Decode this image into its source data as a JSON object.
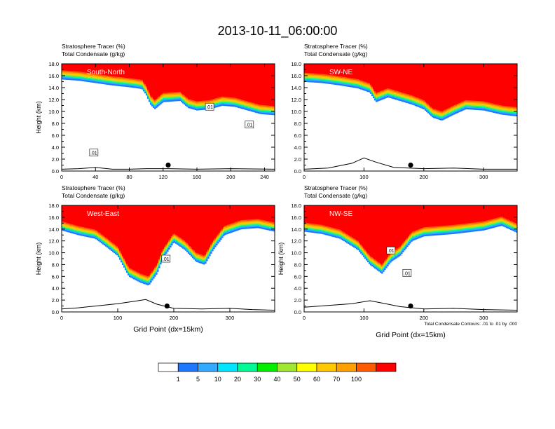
{
  "title": "2013-10-11_06:00:00",
  "colors": {
    "levels": [
      "#ffffff",
      "#1e78ff",
      "#32aaff",
      "#00e6ff",
      "#00fa96",
      "#00ee00",
      "#a0e632",
      "#ffff00",
      "#ffc800",
      "#ffa000",
      "#ff5a00",
      "#ff0000"
    ],
    "contour": "#000000",
    "terrain": "#000000"
  },
  "chart_data": [
    {
      "type": "heatmap",
      "name": "South-North",
      "header_line1": "Stratosphere Tracer   (%)",
      "header_line2": "Total Condensate   (g/kg)",
      "ylabel": "Height (km)",
      "xlabel": "",
      "xlim": [
        0,
        252
      ],
      "ylim": [
        0,
        18
      ],
      "xticks": [
        0,
        40,
        80,
        120,
        160,
        200,
        240
      ],
      "xtick_labels": [
        "0",
        "40",
        "80",
        "120",
        "160",
        "200",
        "240"
      ],
      "yticks": [
        0,
        2,
        4,
        6,
        8,
        10,
        12,
        14,
        16,
        18
      ],
      "ytick_labels": [
        "0.0",
        "2.0",
        "4.0",
        "6.0",
        "8.0",
        "10.0",
        "12.0",
        "14.0",
        "16.0",
        "18.0"
      ],
      "tracer_base_km": [
        [
          0,
          15.4
        ],
        [
          20,
          15.2
        ],
        [
          40,
          14.8
        ],
        [
          60,
          14.4
        ],
        [
          80,
          14.1
        ],
        [
          95,
          13.8
        ],
        [
          100,
          12.8
        ],
        [
          105,
          11.2
        ],
        [
          110,
          10.4
        ],
        [
          120,
          11.6
        ],
        [
          140,
          11.8
        ],
        [
          150,
          10.6
        ],
        [
          160,
          10.2
        ],
        [
          175,
          10.4
        ],
        [
          190,
          11.0
        ],
        [
          205,
          10.8
        ],
        [
          220,
          10.2
        ],
        [
          235,
          9.6
        ],
        [
          252,
          9.4
        ]
      ],
      "band_width_km": 1.5,
      "contour_label_text": ".01",
      "contour_labels_at": [
        [
          175,
          10.8
        ],
        [
          222,
          7.8
        ],
        [
          38,
          3.1
        ]
      ],
      "site_marker": [
        126,
        1.0
      ],
      "terrain_km": [
        [
          0,
          0.3
        ],
        [
          20,
          0.4
        ],
        [
          40,
          0.6
        ],
        [
          60,
          0.3
        ],
        [
          80,
          0.3
        ],
        [
          100,
          0.4
        ],
        [
          126,
          0.4
        ],
        [
          160,
          0.3
        ],
        [
          200,
          0.4
        ],
        [
          252,
          0.3
        ]
      ]
    },
    {
      "type": "heatmap",
      "name": "SW-NE",
      "header_line1": "Stratosphere Tracer   (%)",
      "header_line2": "Total Condensate   (g/kg)",
      "ylabel": "",
      "xlabel": "",
      "xlim": [
        0,
        356
      ],
      "ylim": [
        0,
        18
      ],
      "xticks": [
        0,
        100,
        200,
        300
      ],
      "xtick_labels": [
        "0",
        "100",
        "200",
        "300"
      ],
      "yticks": [
        0,
        2,
        4,
        6,
        8,
        10,
        12,
        14,
        16,
        18
      ],
      "ytick_labels": [
        "0.0",
        "2.0",
        "4.0",
        "6.0",
        "8.0",
        "10.0",
        "12.0",
        "14.0",
        "16.0",
        "18.0"
      ],
      "tracer_base_km": [
        [
          0,
          15.0
        ],
        [
          30,
          14.8
        ],
        [
          60,
          14.4
        ],
        [
          90,
          13.9
        ],
        [
          110,
          13.2
        ],
        [
          120,
          11.6
        ],
        [
          140,
          12.4
        ],
        [
          160,
          11.8
        ],
        [
          180,
          11.2
        ],
        [
          200,
          10.4
        ],
        [
          215,
          9.0
        ],
        [
          230,
          8.5
        ],
        [
          250,
          9.5
        ],
        [
          270,
          10.4
        ],
        [
          300,
          10.2
        ],
        [
          330,
          9.5
        ],
        [
          356,
          9.2
        ]
      ],
      "band_width_km": 1.5,
      "contour_label_text": "",
      "contour_labels_at": [],
      "site_marker": [
        178,
        1.0
      ],
      "terrain_km": [
        [
          0,
          0.3
        ],
        [
          40,
          0.5
        ],
        [
          80,
          1.3
        ],
        [
          100,
          2.2
        ],
        [
          120,
          1.5
        ],
        [
          150,
          0.6
        ],
        [
          200,
          0.4
        ],
        [
          250,
          0.5
        ],
        [
          300,
          0.3
        ],
        [
          356,
          0.3
        ]
      ]
    },
    {
      "type": "heatmap",
      "name": "West-East",
      "header_line1": "Stratosphere Tracer   (%)",
      "header_line2": "Total Condensate   (g/kg)",
      "ylabel": "Height (km)",
      "xlabel": "Grid Point (dx=15km)",
      "xlim": [
        0,
        380
      ],
      "ylim": [
        0,
        18
      ],
      "xticks": [
        0,
        100,
        200,
        300
      ],
      "xtick_labels": [
        "0",
        "100",
        "200",
        "300"
      ],
      "yticks": [
        0,
        2,
        4,
        6,
        8,
        10,
        12,
        14,
        16,
        18
      ],
      "ytick_labels": [
        "0.0",
        "2.0",
        "4.0",
        "6.0",
        "8.0",
        "10.0",
        "12.0",
        "14.0",
        "16.0",
        "18.0"
      ],
      "tracer_base_km": [
        [
          0,
          13.8
        ],
        [
          30,
          13.0
        ],
        [
          60,
          12.4
        ],
        [
          80,
          11.0
        ],
        [
          100,
          9.5
        ],
        [
          120,
          6.0
        ],
        [
          140,
          5.0
        ],
        [
          155,
          4.5
        ],
        [
          170,
          6.5
        ],
        [
          180,
          9.0
        ],
        [
          200,
          11.8
        ],
        [
          220,
          10.5
        ],
        [
          240,
          8.5
        ],
        [
          255,
          8.0
        ],
        [
          270,
          10.5
        ],
        [
          290,
          13.0
        ],
        [
          320,
          14.0
        ],
        [
          350,
          14.2
        ],
        [
          380,
          13.6
        ]
      ],
      "band_width_km": 1.5,
      "contour_label_text": ".01",
      "contour_labels_at": [
        [
          186,
          9.0
        ]
      ],
      "site_marker": [
        188,
        1.0
      ],
      "terrain_km": [
        [
          0,
          0.5
        ],
        [
          30,
          0.7
        ],
        [
          60,
          1.0
        ],
        [
          100,
          1.4
        ],
        [
          130,
          1.8
        ],
        [
          150,
          2.1
        ],
        [
          170,
          1.3
        ],
        [
          200,
          0.6
        ],
        [
          250,
          0.5
        ],
        [
          300,
          0.6
        ],
        [
          340,
          0.4
        ],
        [
          380,
          0.3
        ]
      ]
    },
    {
      "type": "heatmap",
      "name": "NW-SE",
      "header_line1": "Stratosphere Tracer   (%)",
      "header_line2": "Total Condensate   (g/kg)",
      "ylabel": "Height (km)",
      "xlabel": "Grid Point (dx=15km)",
      "footnote": "Total Condensate Contours: .01 to .01 by .000",
      "xlim": [
        0,
        356
      ],
      "ylim": [
        0,
        18
      ],
      "xticks": [
        0,
        100,
        200,
        300
      ],
      "xtick_labels": [
        "0",
        "100",
        "200",
        "300"
      ],
      "yticks": [
        0,
        2,
        4,
        6,
        8,
        10,
        12,
        14,
        16,
        18
      ],
      "ytick_labels": [
        "0.0",
        "2.0",
        "4.0",
        "6.0",
        "8.0",
        "10.0",
        "12.0",
        "14.0",
        "16.0",
        "18.0"
      ],
      "tracer_base_km": [
        [
          0,
          13.6
        ],
        [
          30,
          13.2
        ],
        [
          60,
          12.4
        ],
        [
          90,
          10.5
        ],
        [
          110,
          8.0
        ],
        [
          130,
          6.5
        ],
        [
          145,
          8.5
        ],
        [
          160,
          9.5
        ],
        [
          180,
          12.0
        ],
        [
          200,
          12.8
        ],
        [
          250,
          13.2
        ],
        [
          300,
          13.8
        ],
        [
          330,
          14.6
        ],
        [
          356,
          13.4
        ]
      ],
      "band_width_km": 1.5,
      "contour_label_text": ".01",
      "contour_labels_at": [
        [
          145,
          10.4
        ],
        [
          172,
          6.6
        ]
      ],
      "site_marker": [
        178,
        1.0
      ],
      "terrain_km": [
        [
          0,
          0.8
        ],
        [
          40,
          1.1
        ],
        [
          80,
          1.4
        ],
        [
          110,
          1.9
        ],
        [
          130,
          1.5
        ],
        [
          160,
          0.9
        ],
        [
          200,
          0.5
        ],
        [
          250,
          0.6
        ],
        [
          300,
          0.4
        ],
        [
          356,
          0.3
        ]
      ]
    }
  ],
  "colorbar": {
    "labels": [
      "1",
      "5",
      "10",
      "20",
      "30",
      "40",
      "50",
      "60",
      "70",
      "100"
    ]
  }
}
